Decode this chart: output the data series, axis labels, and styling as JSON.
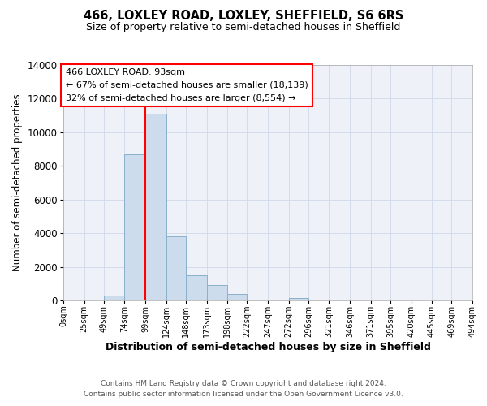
{
  "title": "466, LOXLEY ROAD, LOXLEY, SHEFFIELD, S6 6RS",
  "subtitle": "Size of property relative to semi-detached houses in Sheffield",
  "xlabel": "Distribution of semi-detached houses by size in Sheffield",
  "ylabel": "Number of semi-detached properties",
  "footnote1": "Contains HM Land Registry data © Crown copyright and database right 2024.",
  "footnote2": "Contains public sector information licensed under the Open Government Licence v3.0.",
  "bin_edges": [
    0,
    25,
    49,
    74,
    99,
    124,
    148,
    173,
    198,
    222,
    247,
    272,
    296,
    321,
    346,
    371,
    395,
    420,
    445,
    469,
    494
  ],
  "bin_labels": [
    "0sqm",
    "25sqm",
    "49sqm",
    "74sqm",
    "99sqm",
    "124sqm",
    "148sqm",
    "173sqm",
    "198sqm",
    "222sqm",
    "247sqm",
    "272sqm",
    "296sqm",
    "321sqm",
    "346sqm",
    "371sqm",
    "395sqm",
    "420sqm",
    "445sqm",
    "469sqm",
    "494sqm"
  ],
  "counts": [
    0,
    0,
    300,
    8700,
    11100,
    3800,
    1500,
    900,
    400,
    0,
    0,
    150,
    0,
    0,
    0,
    0,
    0,
    0,
    0,
    0
  ],
  "bar_facecolor": "#ccdcec",
  "bar_edgecolor": "#8ab0cc",
  "red_line_x": 99,
  "ylim": [
    0,
    14000
  ],
  "yticks": [
    0,
    2000,
    4000,
    6000,
    8000,
    10000,
    12000,
    14000
  ],
  "annotation_title": "466 LOXLEY ROAD: 93sqm",
  "annotation_line1": "← 67% of semi-detached houses are smaller (18,139)",
  "annotation_line2": "32% of semi-detached houses are larger (8,554) →",
  "grid_color": "#d0d8e8",
  "plot_bg": "#eef2f8",
  "title_fontsize": 10.5,
  "subtitle_fontsize": 9
}
